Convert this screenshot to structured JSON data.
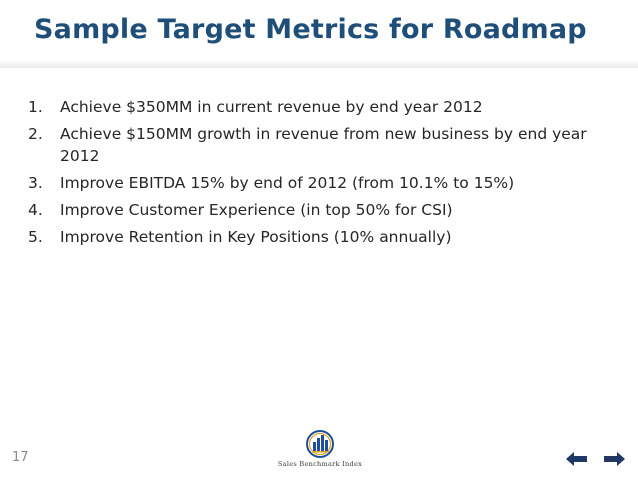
{
  "slide": {
    "title": "Sample Target Metrics for Roadmap",
    "items": [
      {
        "number": "1.",
        "text": "Achieve $350MM in current revenue by end year 2012"
      },
      {
        "number": "2.",
        "text": "Achieve $150MM growth in revenue from new business by end year 2012"
      },
      {
        "number": "3.",
        "text": "Improve EBITDA 15% by end of 2012 (from 10.1% to 15%)"
      },
      {
        "number": "4.",
        "text": "Improve Customer Experience (in top 50% for CSI)"
      },
      {
        "number": "5.",
        "text": "Improve Retention in Key Positions (10% annually)"
      }
    ],
    "slide_number": "17"
  },
  "footer": {
    "logo_text": "Sales Benchmark Index",
    "logo_icon": "bar-chart-seal-icon",
    "prev_icon": "arrow-left-icon",
    "next_icon": "arrow-right-icon"
  },
  "colors": {
    "title": "#1f4e79",
    "body_text": "#262626",
    "nav_arrows": "#1f3864",
    "logo_blue": "#1f4e9a",
    "logo_gold": "#e0a526"
  }
}
